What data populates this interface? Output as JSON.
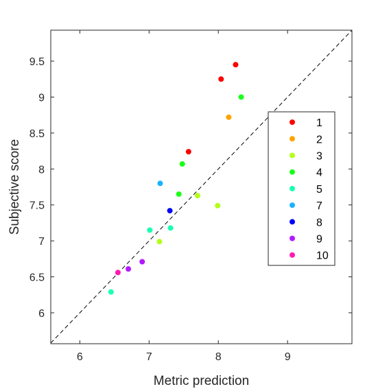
{
  "chart_data": {
    "type": "scatter",
    "title": "",
    "xlabel": "Metric prediction",
    "ylabel": "Subjective score",
    "xlim": [
      5.58,
      9.93
    ],
    "ylim": [
      5.57,
      9.93
    ],
    "xticks": [
      6,
      7,
      8,
      9
    ],
    "yticks": [
      6,
      6.5,
      7,
      7.5,
      8,
      8.5,
      9,
      9.5
    ],
    "xtick_labels": [
      "6",
      "7",
      "8",
      "9"
    ],
    "ytick_labels": [
      "6",
      "6.5",
      "7",
      "7.5",
      "8",
      "8.5",
      "9",
      "9.5"
    ],
    "grid": false,
    "reference_line": "y = x (dashed)",
    "legend_position": "right",
    "series": [
      {
        "name": "1",
        "color": "#ff0000",
        "points": [
          [
            8.25,
            9.45
          ],
          [
            8.04,
            9.25
          ],
          [
            7.57,
            8.24
          ]
        ]
      },
      {
        "name": "2",
        "color": "#ffa500",
        "points": [
          [
            8.15,
            8.72
          ]
        ]
      },
      {
        "name": "3",
        "color": "#b3ff1a",
        "points": [
          [
            7.7,
            7.63
          ],
          [
            7.99,
            7.49
          ],
          [
            7.15,
            6.99
          ]
        ]
      },
      {
        "name": "4",
        "color": "#1aff1a",
        "points": [
          [
            8.33,
            9.0
          ],
          [
            7.48,
            8.07
          ],
          [
            7.43,
            7.65
          ]
        ]
      },
      {
        "name": "5",
        "color": "#1affb3",
        "points": [
          [
            7.31,
            7.18
          ],
          [
            7.01,
            7.15
          ],
          [
            6.45,
            6.29
          ]
        ]
      },
      {
        "name": "7",
        "color": "#1ab3ff",
        "points": [
          [
            7.16,
            7.8
          ]
        ]
      },
      {
        "name": "8",
        "color": "#0000ff",
        "points": [
          [
            7.3,
            7.42
          ]
        ]
      },
      {
        "name": "9",
        "color": "#b31aff",
        "points": [
          [
            6.9,
            6.71
          ],
          [
            6.7,
            6.61
          ]
        ]
      },
      {
        "name": "10",
        "color": "#ff1ab3",
        "points": [
          [
            6.55,
            6.56
          ]
        ]
      }
    ]
  }
}
